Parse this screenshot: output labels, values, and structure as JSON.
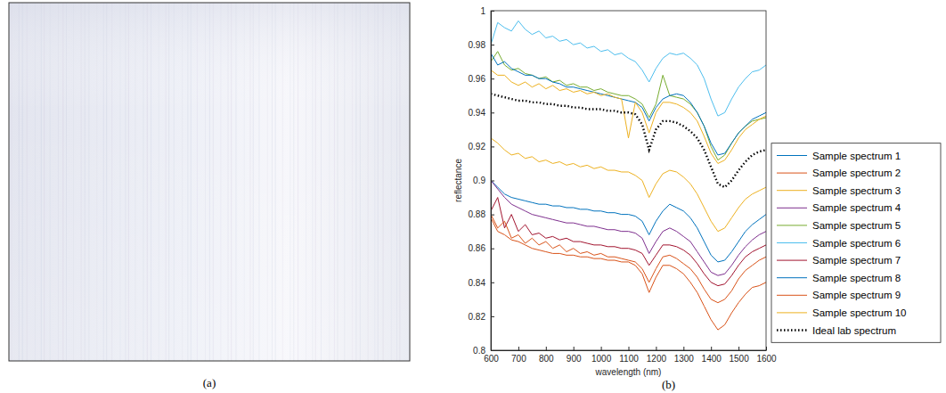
{
  "panel_labels": [
    "(a)",
    "(b)"
  ],
  "chart_data": {
    "type": "line",
    "x_label": "wavelength (nm)",
    "y_label": "reflectance",
    "x": [
      600,
      625,
      650,
      675,
      700,
      725,
      750,
      775,
      800,
      825,
      850,
      875,
      900,
      925,
      950,
      975,
      1000,
      1025,
      1050,
      1075,
      1100,
      1125,
      1150,
      1175,
      1200,
      1225,
      1250,
      1275,
      1300,
      1325,
      1350,
      1375,
      1400,
      1425,
      1450,
      1475,
      1500,
      1525,
      1550,
      1575,
      1600
    ],
    "xlim": [
      600,
      1600
    ],
    "xticks": [
      600,
      700,
      800,
      900,
      1000,
      1100,
      1200,
      1300,
      1400,
      1500,
      1600
    ],
    "ylim": [
      0.8,
      1
    ],
    "yticks": [
      0.8,
      0.82,
      0.84,
      0.86,
      0.88,
      0.9,
      0.92,
      0.94,
      0.96,
      0.98,
      1
    ],
    "grid": false,
    "legend": "right",
    "series": [
      {
        "name": "Sample spectrum 1",
        "color": "#0072BD",
        "line_style": "solid",
        "values": [
          0.9,
          0.896,
          0.892,
          0.89,
          0.889,
          0.888,
          0.887,
          0.886,
          0.886,
          0.885,
          0.885,
          0.884,
          0.884,
          0.883,
          0.883,
          0.882,
          0.882,
          0.881,
          0.881,
          0.88,
          0.88,
          0.879,
          0.876,
          0.868,
          0.876,
          0.882,
          0.886,
          0.884,
          0.882,
          0.878,
          0.872,
          0.864,
          0.856,
          0.852,
          0.853,
          0.858,
          0.864,
          0.87,
          0.874,
          0.877,
          0.88
        ]
      },
      {
        "name": "Sample spectrum 2",
        "color": "#D95319",
        "line_style": "solid",
        "values": [
          0.878,
          0.87,
          0.868,
          0.865,
          0.864,
          0.862,
          0.86,
          0.859,
          0.858,
          0.857,
          0.857,
          0.856,
          0.856,
          0.855,
          0.855,
          0.854,
          0.854,
          0.853,
          0.853,
          0.852,
          0.852,
          0.85,
          0.845,
          0.834,
          0.843,
          0.85,
          0.85,
          0.848,
          0.845,
          0.84,
          0.834,
          0.826,
          0.818,
          0.812,
          0.815,
          0.822,
          0.828,
          0.833,
          0.837,
          0.838,
          0.84
        ]
      },
      {
        "name": "Sample spectrum 3",
        "color": "#EDB120",
        "line_style": "solid",
        "values": [
          0.925,
          0.922,
          0.918,
          0.915,
          0.916,
          0.913,
          0.914,
          0.911,
          0.912,
          0.91,
          0.911,
          0.909,
          0.91,
          0.908,
          0.909,
          0.907,
          0.908,
          0.906,
          0.906,
          0.905,
          0.905,
          0.903,
          0.9,
          0.89,
          0.898,
          0.904,
          0.906,
          0.905,
          0.902,
          0.898,
          0.892,
          0.884,
          0.876,
          0.87,
          0.872,
          0.878,
          0.884,
          0.889,
          0.892,
          0.894,
          0.896
        ]
      },
      {
        "name": "Sample spectrum 4",
        "color": "#7E2F8E",
        "line_style": "solid",
        "values": [
          0.9,
          0.895,
          0.89,
          0.886,
          0.884,
          0.882,
          0.88,
          0.879,
          0.878,
          0.877,
          0.876,
          0.875,
          0.875,
          0.874,
          0.873,
          0.873,
          0.872,
          0.871,
          0.871,
          0.87,
          0.87,
          0.869,
          0.866,
          0.857,
          0.864,
          0.87,
          0.872,
          0.87,
          0.867,
          0.864,
          0.858,
          0.852,
          0.846,
          0.844,
          0.845,
          0.85,
          0.856,
          0.861,
          0.865,
          0.868,
          0.87
        ]
      },
      {
        "name": "Sample spectrum 5",
        "color": "#77AC30",
        "line_style": "solid",
        "values": [
          0.97,
          0.976,
          0.968,
          0.965,
          0.966,
          0.963,
          0.962,
          0.96,
          0.961,
          0.958,
          0.959,
          0.956,
          0.957,
          0.955,
          0.955,
          0.953,
          0.954,
          0.952,
          0.951,
          0.95,
          0.95,
          0.948,
          0.945,
          0.937,
          0.945,
          0.962,
          0.95,
          0.949,
          0.948,
          0.945,
          0.94,
          0.932,
          0.92,
          0.912,
          0.915,
          0.922,
          0.928,
          0.932,
          0.935,
          0.936,
          0.937
        ]
      },
      {
        "name": "Sample spectrum 6",
        "color": "#4DBEEE",
        "line_style": "solid",
        "values": [
          0.98,
          0.993,
          0.99,
          0.988,
          0.994,
          0.989,
          0.986,
          0.988,
          0.984,
          0.985,
          0.982,
          0.983,
          0.98,
          0.981,
          0.978,
          0.979,
          0.976,
          0.977,
          0.974,
          0.975,
          0.972,
          0.97,
          0.965,
          0.958,
          0.966,
          0.972,
          0.975,
          0.974,
          0.975,
          0.972,
          0.968,
          0.96,
          0.948,
          0.938,
          0.94,
          0.948,
          0.955,
          0.96,
          0.964,
          0.965,
          0.968
        ]
      },
      {
        "name": "Sample spectrum 7",
        "color": "#A2142F",
        "line_style": "solid",
        "values": [
          0.882,
          0.89,
          0.872,
          0.88,
          0.87,
          0.874,
          0.868,
          0.869,
          0.866,
          0.867,
          0.865,
          0.866,
          0.864,
          0.864,
          0.863,
          0.862,
          0.862,
          0.861,
          0.861,
          0.86,
          0.86,
          0.859,
          0.857,
          0.85,
          0.856,
          0.862,
          0.862,
          0.861,
          0.859,
          0.856,
          0.851,
          0.845,
          0.84,
          0.838,
          0.839,
          0.844,
          0.85,
          0.855,
          0.858,
          0.86,
          0.862
        ]
      },
      {
        "name": "Sample spectrum 8",
        "color": "#0072BD",
        "line_style": "solid",
        "values": [
          0.975,
          0.968,
          0.97,
          0.966,
          0.964,
          0.962,
          0.962,
          0.96,
          0.96,
          0.958,
          0.957,
          0.955,
          0.955,
          0.954,
          0.953,
          0.952,
          0.951,
          0.95,
          0.949,
          0.948,
          0.947,
          0.946,
          0.943,
          0.935,
          0.943,
          0.948,
          0.95,
          0.951,
          0.95,
          0.946,
          0.94,
          0.932,
          0.922,
          0.915,
          0.916,
          0.922,
          0.928,
          0.932,
          0.936,
          0.938,
          0.94
        ]
      },
      {
        "name": "Sample spectrum 9",
        "color": "#D95319",
        "line_style": "solid",
        "values": [
          0.88,
          0.872,
          0.876,
          0.866,
          0.868,
          0.863,
          0.866,
          0.862,
          0.864,
          0.86,
          0.862,
          0.858,
          0.86,
          0.857,
          0.858,
          0.856,
          0.857,
          0.855,
          0.855,
          0.854,
          0.853,
          0.852,
          0.848,
          0.84,
          0.848,
          0.855,
          0.856,
          0.854,
          0.851,
          0.848,
          0.843,
          0.836,
          0.83,
          0.828,
          0.83,
          0.835,
          0.842,
          0.847,
          0.85,
          0.853,
          0.855
        ]
      },
      {
        "name": "Sample spectrum 10",
        "color": "#EDB120",
        "line_style": "solid",
        "values": [
          0.965,
          0.962,
          0.962,
          0.958,
          0.956,
          0.958,
          0.955,
          0.957,
          0.954,
          0.956,
          0.953,
          0.954,
          0.952,
          0.953,
          0.951,
          0.952,
          0.95,
          0.951,
          0.949,
          0.948,
          0.925,
          0.946,
          0.94,
          0.928,
          0.94,
          0.946,
          0.946,
          0.945,
          0.943,
          0.94,
          0.935,
          0.926,
          0.916,
          0.91,
          0.912,
          0.918,
          0.925,
          0.93,
          0.933,
          0.936,
          0.938
        ]
      },
      {
        "name": "Ideal lab spectrum",
        "color": "#000000",
        "line_style": "dotted",
        "values": [
          0.951,
          0.95,
          0.949,
          0.948,
          0.947,
          0.947,
          0.946,
          0.946,
          0.945,
          0.945,
          0.944,
          0.944,
          0.943,
          0.943,
          0.942,
          0.942,
          0.942,
          0.941,
          0.941,
          0.94,
          0.94,
          0.939,
          0.933,
          0.918,
          0.93,
          0.935,
          0.935,
          0.934,
          0.932,
          0.929,
          0.925,
          0.918,
          0.908,
          0.898,
          0.896,
          0.9,
          0.906,
          0.911,
          0.915,
          0.917,
          0.918
        ]
      }
    ]
  }
}
